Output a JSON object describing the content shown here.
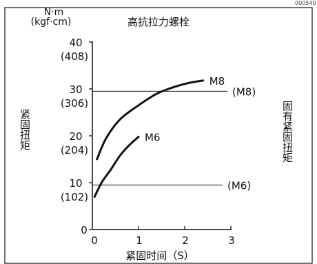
{
  "corner_code": "000540",
  "chart_data": {
    "type": "line",
    "title": "高抗拉力螺栓",
    "ylabel_unit": [
      "N·m",
      "(kgf·cm)"
    ],
    "ylabel": "紧固扭矩",
    "ylabel_right": "固有紧固扭矩",
    "xlabel": "紧固时间（S）",
    "xlim": [
      0,
      3
    ],
    "ylim": [
      0,
      40
    ],
    "grid": false,
    "legend": "none",
    "x_ticks": [
      {
        "value": 0,
        "label": "0"
      },
      {
        "value": 1,
        "label": "1"
      },
      {
        "value": 2,
        "label": "2"
      },
      {
        "value": 3,
        "label": "3"
      }
    ],
    "y_ticks": [
      {
        "value": 0,
        "label": "0"
      },
      {
        "value": 10,
        "label": "10",
        "sub": "(102)"
      },
      {
        "value": 20,
        "label": "20",
        "sub": "(204)"
      },
      {
        "value": 30,
        "label": "30",
        "sub": "(306)"
      },
      {
        "value": 40,
        "label": "40",
        "sub": "(408)"
      }
    ],
    "series": [
      {
        "name": "M8",
        "x": [
          0.1,
          0.3,
          0.6,
          1.0,
          1.4,
          1.8,
          2.1,
          2.4
        ],
        "y": [
          15,
          19.5,
          23.5,
          26.5,
          29,
          30.5,
          31.3,
          31.8
        ]
      },
      {
        "name": "M6",
        "x": [
          0.05,
          0.2,
          0.4,
          0.6,
          0.8,
          1.0
        ],
        "y": [
          7,
          10,
          12.8,
          15.8,
          18,
          19.8
        ]
      }
    ],
    "reference_lines": [
      {
        "label": "(M8)",
        "y": 29.5
      },
      {
        "label": "(M6)",
        "y": 9.5
      }
    ]
  }
}
